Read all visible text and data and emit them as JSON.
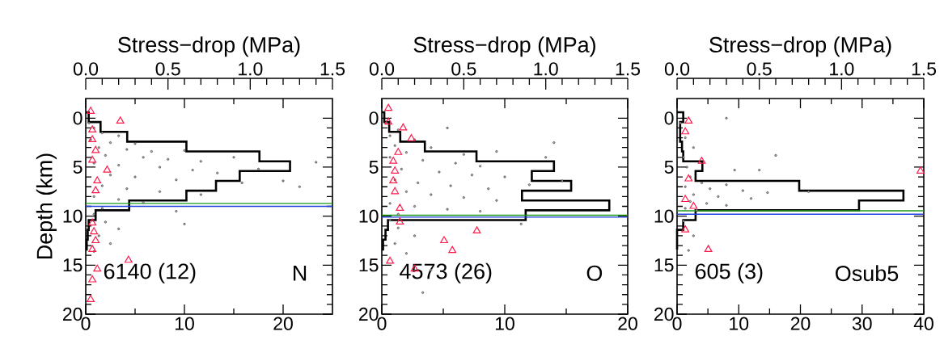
{
  "chart_data": [
    {
      "type": "histogram",
      "orientation": "horizontal",
      "x2label": "Stress−drop (MPa)",
      "ylabel": "Depth (km)",
      "xlim": [
        0,
        25
      ],
      "xticks": [
        0,
        10,
        20
      ],
      "x2lim": [
        0,
        1.5
      ],
      "x2ticks": [
        {
          "value": 0,
          "label": "0.0"
        },
        {
          "value": 0.5,
          "label": "0.5"
        },
        {
          "value": 1,
          "label": "1.0"
        },
        {
          "value": 1.5,
          "label": "1.5"
        }
      ],
      "ylim": [
        20,
        -2
      ],
      "yticks": [
        0,
        5,
        10,
        15,
        20
      ],
      "series": [
        {
          "type": "histogram",
          "color": "#000000",
          "bins": [
            -0.6,
            0.4,
            1.4,
            2.4,
            3.4,
            4.4,
            5.4,
            6.4,
            7.4,
            8.4,
            9.4,
            10.4,
            11.4,
            12.4,
            13.4
          ],
          "values": [
            0.3,
            1.5,
            4.2,
            10.2,
            17.6,
            20.7,
            15.6,
            13.2,
            10.2,
            4.4,
            1.0,
            0.3,
            0.2,
            0.1
          ]
        },
        {
          "type": "scatter",
          "axis": "x2",
          "marker": "circle",
          "color": "#a8a8a8",
          "values": [
            0.02,
            0.05,
            0.1,
            0.2,
            0.03,
            0.15,
            0.3,
            0.08,
            0.25,
            0.4,
            0.6,
            0.12,
            0.35,
            0.5,
            0.7,
            0.9,
            0.05,
            0.2,
            0.45,
            0.65,
            0.8,
            1.05,
            0.15,
            0.3,
            0.55,
            0.95,
            1.2,
            0.1,
            0.25,
            0.45,
            0.7,
            0.05,
            0.2,
            0.35,
            0.1,
            0.05,
            0.12,
            0.2,
            0.08,
            0.15,
            0.05,
            1.4,
            1.3,
            0.55,
            0.6
          ],
          "x": [
            0.5,
            1.0,
            1.5,
            1.8,
            2.2,
            2.5,
            2.6,
            3.0,
            3.2,
            3.4,
            3.3,
            3.8,
            4.0,
            4.2,
            4.4,
            4.0,
            4.6,
            4.8,
            5.0,
            5.3,
            5.6,
            5.2,
            5.8,
            6.0,
            6.3,
            6.6,
            6.4,
            6.9,
            7.2,
            7.5,
            7.8,
            8.0,
            8.3,
            8.6,
            9.2,
            9.8,
            10.6,
            11.3,
            12.0,
            12.8,
            13.6,
            4.5,
            7.0,
            9.5,
            10.8
          ]
        },
        {
          "type": "scatter",
          "axis": "x2",
          "marker": "triangle",
          "color": "#ff1a4a",
          "values": [
            0.03,
            0.21,
            0.04,
            0.04,
            0.06,
            0.04,
            0.13,
            0.07,
            0.06,
            0.04,
            0.05,
            0.06,
            0.04,
            0.26,
            0.07,
            0.04,
            0.03
          ],
          "x": [
            -0.7,
            0.3,
            1.2,
            2.2,
            3.3,
            4.3,
            5.3,
            6.4,
            7.4,
            10.7,
            11.6,
            12.5,
            13.4,
            14.5,
            15.4,
            16.5,
            18.5
          ]
        }
      ],
      "ref_lines": [
        {
          "axis": "y",
          "value": 8.7,
          "color": "#1a9a1a"
        },
        {
          "axis": "y",
          "value": 9.0,
          "color": "#2040e0"
        }
      ],
      "annotations": [
        "6140 (12)",
        "N"
      ]
    },
    {
      "type": "histogram",
      "orientation": "horizontal",
      "x2label": "Stress−drop (MPa)",
      "xlim": [
        0,
        20
      ],
      "xticks": [
        0,
        10,
        20
      ],
      "x2lim": [
        0,
        1.5
      ],
      "x2ticks": [
        {
          "value": 0,
          "label": "0.0"
        },
        {
          "value": 0.5,
          "label": "0.5"
        },
        {
          "value": 1,
          "label": "1.0"
        },
        {
          "value": 1.5,
          "label": "1.5"
        }
      ],
      "ylim": [
        20,
        -2
      ],
      "yticks": [
        0,
        5,
        10,
        15,
        20
      ],
      "series": [
        {
          "type": "histogram",
          "color": "#000000",
          "bins": [
            -0.6,
            0.4,
            1.4,
            2.4,
            3.4,
            4.4,
            5.4,
            6.4,
            7.4,
            8.4,
            9.4,
            10.4,
            11.4,
            12.4,
            13.4
          ],
          "values": [
            0.2,
            0.6,
            1.5,
            3.5,
            7.7,
            14.0,
            12.2,
            15.4,
            11.4,
            18.5,
            11.7,
            0.5,
            0.3,
            0.1
          ]
        },
        {
          "type": "scatter",
          "axis": "x2",
          "marker": "circle",
          "color": "#a8a8a8",
          "values": [
            0.03,
            0.1,
            0.05,
            0.2,
            0.4,
            0.08,
            0.3,
            0.15,
            0.5,
            0.7,
            0.05,
            0.25,
            0.45,
            0.6,
            0.12,
            0.35,
            0.55,
            0.75,
            0.08,
            0.22,
            0.42,
            0.65,
            0.9,
            0.15,
            0.3,
            0.5,
            0.7,
            0.05,
            0.2,
            0.4,
            0.6,
            0.1,
            0.05,
            0.1,
            0.2,
            0.08,
            0.15,
            1.0,
            1.1,
            0.85,
            1.05,
            0.3,
            0.25
          ],
          "x": [
            0.5,
            1.2,
            1.8,
            2.2,
            1.0,
            2.8,
            3.0,
            3.5,
            3.7,
            3.4,
            4.0,
            4.3,
            4.6,
            4.9,
            5.2,
            5.5,
            5.8,
            6.0,
            6.3,
            6.6,
            6.9,
            7.2,
            6.8,
            7.5,
            7.8,
            8.1,
            8.4,
            8.7,
            9.0,
            9.3,
            9.5,
            9.8,
            10.4,
            11.2,
            12.0,
            12.8,
            13.8,
            4.0,
            6.4,
            10.8,
            2.5,
            15.5,
            17.8
          ]
        },
        {
          "type": "scatter",
          "axis": "x2",
          "marker": "triangle",
          "color": "#ff1a4a",
          "values": [
            0.04,
            0.04,
            0.13,
            0.18,
            0.1,
            0.07,
            0.08,
            0.07,
            0.08,
            0.11,
            0.11,
            0.58,
            0.38,
            0.43,
            0.05,
            0.2
          ],
          "x": [
            -1.0,
            0.4,
            1.0,
            2.1,
            3.5,
            4.4,
            5.4,
            6.4,
            7.5,
            9.2,
            10.6,
            11.5,
            12.5,
            13.5,
            14.6,
            15.4
          ]
        }
      ],
      "ref_lines": [
        {
          "axis": "y",
          "value": 9.9,
          "color": "#1a9a1a"
        },
        {
          "axis": "y",
          "value": 10.1,
          "color": "#2040e0"
        }
      ],
      "annotations": [
        "4573 (26)",
        "O"
      ]
    },
    {
      "type": "histogram",
      "orientation": "horizontal",
      "x2label": "Stress−drop (MPa)",
      "xlim": [
        0,
        40
      ],
      "xticks": [
        0,
        10,
        20,
        30,
        40
      ],
      "x2lim": [
        0,
        1.5
      ],
      "x2ticks": [
        {
          "value": 0,
          "label": "0.0"
        },
        {
          "value": 0.5,
          "label": "0.5"
        },
        {
          "value": 1,
          "label": "1.0"
        },
        {
          "value": 1.5,
          "label": "1.5"
        }
      ],
      "ylim": [
        20,
        -2
      ],
      "yticks": [
        0,
        5,
        10,
        15,
        20
      ],
      "series": [
        {
          "type": "histogram",
          "color": "#000000",
          "bins": [
            -0.6,
            0.4,
            1.4,
            2.4,
            3.4,
            4.4,
            5.4,
            6.4,
            7.4,
            8.4,
            9.4,
            10.4,
            11.4,
            12.4,
            13.4
          ],
          "values": [
            1.0,
            0.5,
            0.5,
            0.8,
            1.0,
            4.1,
            3.0,
            19.8,
            36.7,
            29.5,
            3.0,
            1.0,
            0,
            0
          ]
        },
        {
          "type": "scatter",
          "axis": "x2",
          "marker": "circle",
          "color": "#a8a8a8",
          "values": [
            0.02,
            0.05,
            0.1,
            0.04,
            0.06,
            0.35,
            0.5,
            0.08,
            0.15,
            0.3,
            0.05,
            0.2,
            0.4,
            0.55,
            0.1,
            0.25,
            0.45,
            0.08,
            0.18,
            0.3,
            0.05,
            0.12,
            0.6,
            0.8,
            0.04,
            0.1,
            0.07,
            0.3
          ],
          "x": [
            0.5,
            2.0,
            3.0,
            4.0,
            5.0,
            5.3,
            5.3,
            6.0,
            6.6,
            6.8,
            7.0,
            7.2,
            7.4,
            7.6,
            7.8,
            8.0,
            8.2,
            8.5,
            8.7,
            8.9,
            9.2,
            9.4,
            3.8,
            7.5,
            10.5,
            12.0,
            13.5,
            0.0
          ]
        },
        {
          "type": "scatter",
          "axis": "x2",
          "marker": "triangle",
          "color": "#ff1a4a",
          "values": [
            0.07,
            0.05,
            0.15,
            0.07,
            0.05,
            0.1,
            0.05,
            0.19,
            1.48
          ],
          "x": [
            0.3,
            1.4,
            4.4,
            6.2,
            8.3,
            9.0,
            11.4,
            13.4,
            5.4
          ]
        }
      ],
      "ref_lines": [
        {
          "axis": "y",
          "value": 9.45,
          "color": "#1a9a1a"
        },
        {
          "axis": "y",
          "value": 9.8,
          "color": "#2040e0"
        }
      ],
      "annotations": [
        "605 (3)",
        "Osub5"
      ]
    }
  ]
}
